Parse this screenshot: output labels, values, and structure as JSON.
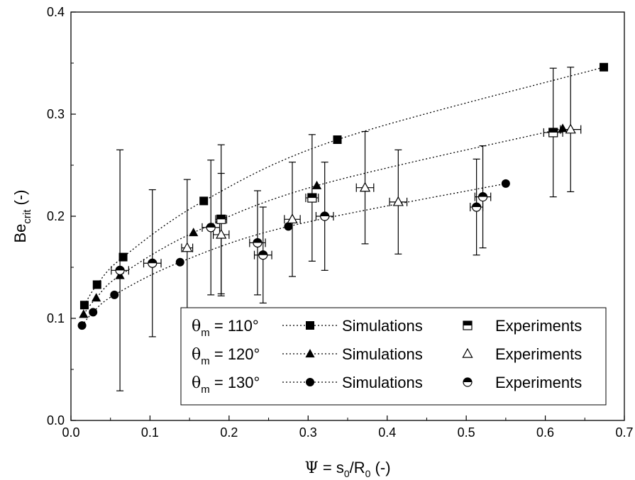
{
  "chart_data": {
    "type": "scatter",
    "title": "",
    "xlabel": {
      "greek": "Ψ",
      "eq": " = s",
      "sub1": "0",
      "slash": "/R",
      "sub2": "0",
      "unit": " (-)"
    },
    "ylabel": {
      "main": "Be",
      "sub": "crit",
      "unit": "  (-)"
    },
    "xlim": [
      0.0,
      0.7
    ],
    "ylim": [
      0.0,
      0.4
    ],
    "xticks": [
      "0.0",
      "0.1",
      "0.2",
      "0.3",
      "0.4",
      "0.5",
      "0.6",
      "0.7"
    ],
    "yticks": [
      "0.0",
      "0.1",
      "0.2",
      "0.3",
      "0.4"
    ],
    "grid": false,
    "legend_position": "bottom-right",
    "series": [
      {
        "name": "Simulations",
        "group": "110°",
        "marker": "square",
        "points": [
          [
            0.017,
            0.113
          ],
          [
            0.033,
            0.133
          ],
          [
            0.066,
            0.16
          ],
          [
            0.168,
            0.215
          ],
          [
            0.337,
            0.275
          ],
          [
            0.674,
            0.346
          ]
        ]
      },
      {
        "name": "Simulations",
        "group": "120°",
        "marker": "triangle",
        "points": [
          [
            0.016,
            0.104
          ],
          [
            0.032,
            0.12
          ],
          [
            0.062,
            0.142
          ],
          [
            0.155,
            0.184
          ],
          [
            0.311,
            0.23
          ],
          [
            0.622,
            0.286
          ]
        ]
      },
      {
        "name": "Simulations",
        "group": "130°",
        "marker": "circle",
        "points": [
          [
            0.014,
            0.093
          ],
          [
            0.028,
            0.106
          ],
          [
            0.055,
            0.123
          ],
          [
            0.138,
            0.155
          ],
          [
            0.275,
            0.19
          ],
          [
            0.55,
            0.232
          ]
        ]
      },
      {
        "name": "Experiments",
        "group": "110°",
        "marker": "half-square",
        "points": [
          [
            0.19,
            0.197,
            0.007,
            0.073
          ],
          [
            0.305,
            0.218,
            0.008,
            0.062
          ],
          [
            0.61,
            0.282,
            0.012,
            0.063
          ]
        ]
      },
      {
        "name": "Experiments",
        "group": "120°",
        "marker": "open-triangle",
        "points": [
          [
            0.147,
            0.169,
            0.007,
            0.067
          ],
          [
            0.19,
            0.182,
            0.01,
            0.06
          ],
          [
            0.28,
            0.197,
            0.01,
            0.056
          ],
          [
            0.372,
            0.228,
            0.011,
            0.055
          ],
          [
            0.414,
            0.214,
            0.011,
            0.051
          ],
          [
            0.632,
            0.285,
            0.013,
            0.061
          ]
        ]
      },
      {
        "name": "Experiments",
        "group": "130°",
        "marker": "half-circle",
        "points": [
          [
            0.062,
            0.147,
            0.011,
            0.118
          ],
          [
            0.103,
            0.154,
            0.011,
            0.072
          ],
          [
            0.177,
            0.189,
            0.011,
            0.066
          ],
          [
            0.236,
            0.174,
            0.01,
            0.051
          ],
          [
            0.243,
            0.162,
            0.011,
            0.047
          ],
          [
            0.321,
            0.2,
            0.011,
            0.053
          ],
          [
            0.513,
            0.209,
            0.008,
            0.047
          ],
          [
            0.521,
            0.219,
            0.01,
            0.05
          ]
        ]
      }
    ],
    "fits": [
      {
        "group": "110°",
        "points": [
          [
            0.017,
            0.113
          ],
          [
            0.033,
            0.133
          ],
          [
            0.066,
            0.16
          ],
          [
            0.168,
            0.215
          ],
          [
            0.337,
            0.275
          ],
          [
            0.674,
            0.346
          ]
        ]
      },
      {
        "group": "120°",
        "points": [
          [
            0.016,
            0.104
          ],
          [
            0.032,
            0.12
          ],
          [
            0.062,
            0.142
          ],
          [
            0.155,
            0.184
          ],
          [
            0.311,
            0.23
          ],
          [
            0.622,
            0.286
          ]
        ]
      },
      {
        "group": "130°",
        "points": [
          [
            0.014,
            0.093
          ],
          [
            0.028,
            0.106
          ],
          [
            0.055,
            0.123
          ],
          [
            0.138,
            0.155
          ],
          [
            0.275,
            0.19
          ],
          [
            0.55,
            0.232
          ]
        ]
      }
    ],
    "legend": [
      {
        "greek": "θ",
        "sub": "m",
        "value": " = 110°",
        "sim_label": "Simulations",
        "sim_marker": "square",
        "exp_label": "Experiments",
        "exp_marker": "half-square"
      },
      {
        "greek": "θ",
        "sub": "m",
        "value": " = 120°",
        "sim_label": "Simulations",
        "sim_marker": "triangle",
        "exp_label": "Experiments",
        "exp_marker": "open-triangle"
      },
      {
        "greek": "θ",
        "sub": "m",
        "value": " = 130°",
        "sim_label": "Simulations",
        "sim_marker": "circle",
        "exp_label": "Experiments",
        "exp_marker": "half-circle"
      }
    ],
    "colors": {
      "ink": "#000000",
      "background": "#ffffff"
    }
  }
}
